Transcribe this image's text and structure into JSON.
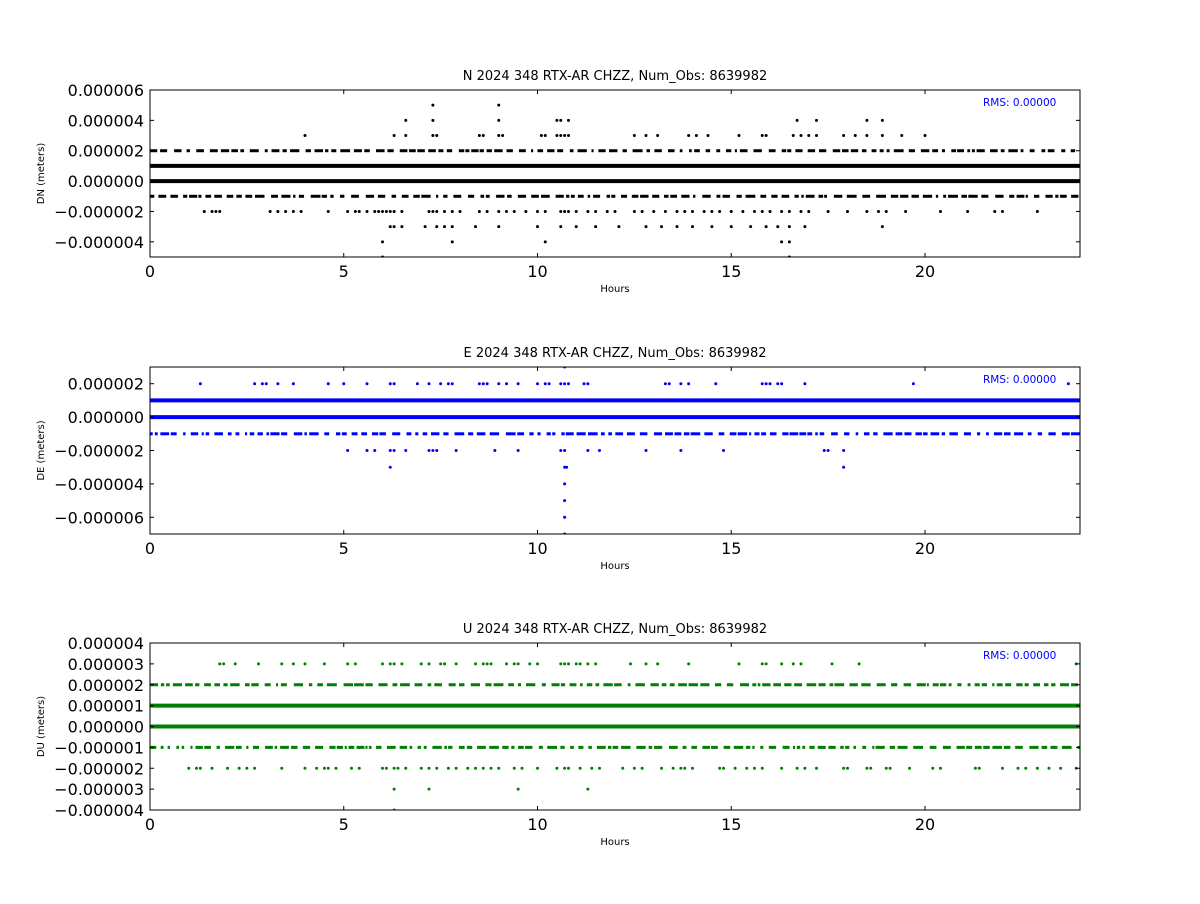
{
  "chart_data": [
    {
      "type": "scatter",
      "title": "N 2024 348 RTX-AR  CHZZ, Num_Obs: 8639982",
      "xlabel": "Hours",
      "ylabel": "DN (meters)",
      "xlim": [
        0,
        24
      ],
      "ylim": [
        -5e-06,
        6e-06
      ],
      "xticks": [
        "0",
        "5",
        "10",
        "15",
        "20"
      ],
      "yticks": [
        "0.000006",
        "0.000004",
        "0.000002",
        "0.000000",
        "−0.000002",
        "−0.000004"
      ],
      "ytick_values": [
        6e-06,
        4e-06,
        2e-06,
        0.0,
        -2e-06,
        -4e-06
      ],
      "color": "#000000",
      "grid": false,
      "annotation": "RMS:  0.00000",
      "annotation_color": "#0000ff",
      "series": [
        {
          "y": 1e-06,
          "density": "continuous",
          "x_range": [
            0,
            24
          ]
        },
        {
          "y": 0.0,
          "density": "continuous",
          "x_range": [
            0,
            24
          ]
        },
        {
          "y": 2e-06,
          "density": "dense",
          "x_range": [
            0,
            24
          ]
        },
        {
          "y": -1e-06,
          "density": "dense",
          "x_range": [
            0,
            24
          ]
        },
        {
          "y": -2e-06,
          "density": "sparse",
          "x": [
            1.4,
            1.6,
            1.7,
            1.8,
            3.1,
            3.3,
            3.5,
            3.7,
            3.9,
            4.6,
            5.1,
            5.3,
            5.4,
            5.6,
            5.8,
            5.9,
            6.0,
            6.1,
            6.2,
            6.3,
            6.5,
            7.2,
            7.3,
            7.4,
            7.6,
            7.8,
            8.0,
            8.5,
            8.7,
            9.0,
            9.2,
            9.4,
            9.7,
            10.0,
            10.2,
            10.6,
            10.7,
            10.8,
            11.0,
            11.3,
            11.5,
            11.8,
            12.0,
            12.5,
            12.7,
            13.0,
            13.3,
            13.6,
            13.8,
            14.0,
            14.3,
            14.5,
            14.7,
            15.0,
            15.3,
            15.6,
            15.8,
            16.0,
            16.3,
            16.5,
            16.8,
            17.0,
            17.5,
            18.0,
            18.5,
            18.8,
            19.0,
            19.5,
            20.4,
            21.1,
            21.8,
            22.0,
            22.9
          ],
          "y_value": -2e-06
        },
        {
          "y": 3e-06,
          "density": "sparse",
          "x": [
            4.0,
            6.3,
            6.6,
            7.3,
            7.4,
            8.5,
            8.6,
            9.0,
            9.1,
            10.1,
            10.2,
            10.5,
            10.6,
            10.7,
            10.8,
            12.5,
            12.8,
            13.1,
            13.9,
            14.1,
            14.4,
            15.2,
            15.8,
            15.9,
            16.6,
            16.8,
            17.0,
            17.2,
            17.9,
            18.2,
            18.5,
            18.9,
            19.4,
            20.0
          ],
          "y_value": 3e-06
        },
        {
          "y": -3e-06,
          "density": "sparse",
          "x": [
            6.2,
            6.3,
            6.5,
            7.1,
            7.4,
            7.6,
            7.8,
            8.4,
            9.0,
            10.0,
            10.6,
            11.0,
            11.5,
            12.1,
            12.8,
            13.2,
            13.6,
            14.0,
            14.5,
            15.0,
            15.5,
            15.9,
            16.2,
            16.5,
            16.9,
            18.9
          ],
          "y_value": -3e-06
        },
        {
          "points": [
            [
              7.3,
              4e-06
            ],
            [
              6.6,
              4e-06
            ],
            [
              9.0,
              4e-06
            ],
            [
              10.5,
              4e-06
            ],
            [
              10.6,
              4e-06
            ],
            [
              10.8,
              4e-06
            ],
            [
              16.7,
              4e-06
            ],
            [
              17.2,
              4e-06
            ],
            [
              18.5,
              4e-06
            ],
            [
              18.9,
              4e-06
            ],
            [
              7.3,
              5e-06
            ],
            [
              9.0,
              5e-06
            ],
            [
              6.0,
              -4e-06
            ],
            [
              7.8,
              -4e-06
            ],
            [
              10.2,
              -4e-06
            ],
            [
              16.3,
              -4e-06
            ],
            [
              16.5,
              -4e-06
            ],
            [
              6.0,
              -5e-06
            ],
            [
              16.5,
              -5e-06
            ]
          ]
        }
      ]
    },
    {
      "type": "scatter",
      "title": "E 2024 348 RTX-AR  CHZZ, Num_Obs: 8639982",
      "xlabel": "Hours",
      "ylabel": "DE (meters)",
      "xlim": [
        0,
        24
      ],
      "ylim": [
        -7e-06,
        3e-06
      ],
      "xticks": [
        "0",
        "5",
        "10",
        "15",
        "20"
      ],
      "yticks": [
        "0.000002",
        "0.000000",
        "−0.000002",
        "−0.000004",
        "−0.000006"
      ],
      "ytick_values": [
        2e-06,
        0.0,
        -2e-06,
        -4e-06,
        -6e-06
      ],
      "color": "#0000ff",
      "grid": false,
      "annotation": "RMS:  0.00000",
      "annotation_color": "#0000ff",
      "series": [
        {
          "y": 1e-06,
          "density": "continuous",
          "x_range": [
            0,
            24
          ]
        },
        {
          "y": 0.0,
          "density": "continuous",
          "x_range": [
            0,
            24
          ]
        },
        {
          "y": -1e-06,
          "density": "dense",
          "x_range": [
            0,
            24
          ]
        },
        {
          "y": 2e-06,
          "density": "sparse",
          "x": [
            1.3,
            2.7,
            2.9,
            3.0,
            3.3,
            3.7,
            4.6,
            5.0,
            5.6,
            6.2,
            6.3,
            6.9,
            7.2,
            7.5,
            7.7,
            7.8,
            8.5,
            8.6,
            8.7,
            9.0,
            9.2,
            9.5,
            10.0,
            10.2,
            10.3,
            10.6,
            10.7,
            10.8,
            11.2,
            11.3,
            13.3,
            13.4,
            13.7,
            13.9,
            14.6,
            15.8,
            15.9,
            16.0,
            16.2,
            16.3,
            16.9,
            19.7,
            23.7
          ],
          "y_value": 2e-06
        },
        {
          "y": -2e-06,
          "density": "sparse",
          "x": [
            5.1,
            5.6,
            5.8,
            6.2,
            6.3,
            6.6,
            7.2,
            7.3,
            7.4,
            7.9,
            8.9,
            9.5,
            10.6,
            10.7,
            11.3,
            11.6,
            12.8,
            13.7,
            14.8,
            17.4,
            17.5,
            17.9
          ],
          "y_value": -2e-06
        },
        {
          "points": [
            [
              6.2,
              -3e-06
            ],
            [
              10.7,
              -3e-06
            ],
            [
              10.75,
              -3e-06
            ],
            [
              17.9,
              -3e-06
            ],
            [
              10.7,
              -4e-06
            ],
            [
              10.7,
              -5e-06
            ],
            [
              10.7,
              -6e-06
            ],
            [
              10.7,
              -7e-06
            ],
            [
              10.7,
              3e-06
            ]
          ]
        }
      ]
    },
    {
      "type": "scatter",
      "title": "U 2024 348 RTX-AR  CHZZ, Num_Obs: 8639982",
      "xlabel": "Hours",
      "ylabel": "DU (meters)",
      "xlim": [
        0,
        24
      ],
      "ylim": [
        -4e-06,
        4e-06
      ],
      "xticks": [
        "0",
        "5",
        "10",
        "15",
        "20"
      ],
      "yticks": [
        "0.000004",
        "0.000003",
        "0.000002",
        "0.000001",
        "0.000000",
        "−0.000001",
        "−0.000002",
        "−0.000003",
        "−0.000004"
      ],
      "ytick_values": [
        4e-06,
        3e-06,
        2e-06,
        1e-06,
        0.0,
        -1e-06,
        -2e-06,
        -3e-06,
        -4e-06
      ],
      "color": "#007f00",
      "grid": false,
      "annotation": "RMS:  0.00000",
      "annotation_color": "#0000ff",
      "series": [
        {
          "y": 1e-06,
          "density": "continuous",
          "x_range": [
            0,
            24
          ]
        },
        {
          "y": 0.0,
          "density": "continuous",
          "x_range": [
            0,
            24
          ]
        },
        {
          "y": 2e-06,
          "density": "dense",
          "x_range": [
            0,
            24
          ]
        },
        {
          "y": -1e-06,
          "density": "dense",
          "x_range": [
            0,
            24
          ]
        },
        {
          "y": 3e-06,
          "density": "sparse",
          "x": [
            1.8,
            1.9,
            2.2,
            2.8,
            3.4,
            3.7,
            4.0,
            4.5,
            5.1,
            5.3,
            6.0,
            6.2,
            6.3,
            6.5,
            7.0,
            7.2,
            7.5,
            7.6,
            7.9,
            8.4,
            8.6,
            8.7,
            8.8,
            9.2,
            9.4,
            9.5,
            9.8,
            10.0,
            10.6,
            10.7,
            10.8,
            11.0,
            11.1,
            11.3,
            11.5,
            12.4,
            12.8,
            13.1,
            13.9,
            15.2,
            15.8,
            15.9,
            16.3,
            16.6,
            16.8,
            17.6,
            18.3,
            23.9
          ],
          "y_value": 3e-06
        },
        {
          "y": -2e-06,
          "density": "sparse",
          "x": [
            1.0,
            1.2,
            1.3,
            1.6,
            2.0,
            2.3,
            2.5,
            2.7,
            3.4,
            4.0,
            4.3,
            4.5,
            4.6,
            4.8,
            5.2,
            5.4,
            6.0,
            6.1,
            6.3,
            6.4,
            6.6,
            7.0,
            7.2,
            7.4,
            7.7,
            7.9,
            8.2,
            8.4,
            8.6,
            8.8,
            9.0,
            9.4,
            9.6,
            10.0,
            10.5,
            10.7,
            10.8,
            11.1,
            11.4,
            11.6,
            12.2,
            12.5,
            12.7,
            13.2,
            13.5,
            13.7,
            13.8,
            14.0,
            14.7,
            14.8,
            15.1,
            15.4,
            15.6,
            15.8,
            16.3,
            16.7,
            16.9,
            17.2,
            17.9,
            18.0,
            18.5,
            18.6,
            19.0,
            19.1,
            19.6,
            20.2,
            20.4,
            21.3,
            21.4,
            22.0,
            22.4,
            22.6,
            22.9,
            23.2,
            23.5,
            23.9
          ],
          "y_value": -2e-06
        },
        {
          "points": [
            [
              6.3,
              -3e-06
            ],
            [
              7.2,
              -3e-06
            ],
            [
              9.5,
              -3e-06
            ],
            [
              11.3,
              -3e-06
            ],
            [
              6.3,
              -4e-06
            ]
          ]
        }
      ]
    }
  ]
}
